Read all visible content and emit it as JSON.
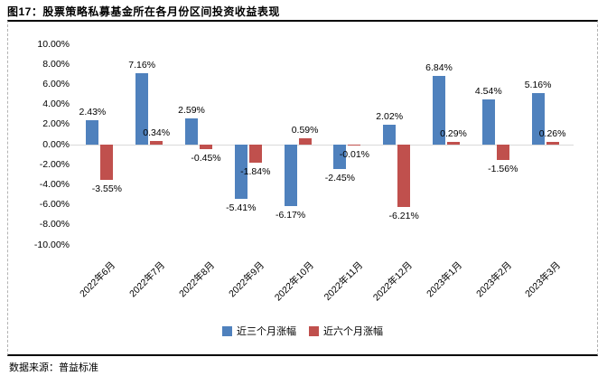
{
  "figure": {
    "title": "图17：股票策略私募基金所在各月份区间投资收益表现",
    "source": "数据来源：普益标准"
  },
  "chart_data": {
    "type": "bar",
    "title": "股票策略私募基金所在各月份区间投资收益表现",
    "categories": [
      "2022年6月",
      "2022年7月",
      "2022年8月",
      "2022年9月",
      "2022年10月",
      "2022年11月",
      "2022年12月",
      "2023年1月",
      "2023年2月",
      "2023年3月"
    ],
    "series": [
      {
        "name": "近三个月涨幅",
        "color": "#4F81BD",
        "values": [
          2.43,
          7.16,
          2.59,
          -5.41,
          -6.17,
          -2.45,
          2.02,
          6.84,
          4.54,
          5.16
        ]
      },
      {
        "name": "近六个月涨幅",
        "color": "#C0504D",
        "values": [
          -3.55,
          0.34,
          -0.45,
          -1.84,
          0.59,
          -0.01,
          -6.21,
          0.29,
          -1.56,
          0.26
        ]
      }
    ],
    "y_ticks": [
      "10.00%",
      "8.00%",
      "6.00%",
      "4.00%",
      "2.00%",
      "0.00%",
      "-2.00%",
      "-4.00%",
      "-6.00%",
      "-8.00%",
      "-10.00%"
    ],
    "ylim": [
      -10,
      10
    ],
    "y_tick_step": 2,
    "grid": false,
    "data_labels": true,
    "label_suffix": "%",
    "legend_position": "bottom",
    "zero_line_color": "#d9d9d9"
  }
}
